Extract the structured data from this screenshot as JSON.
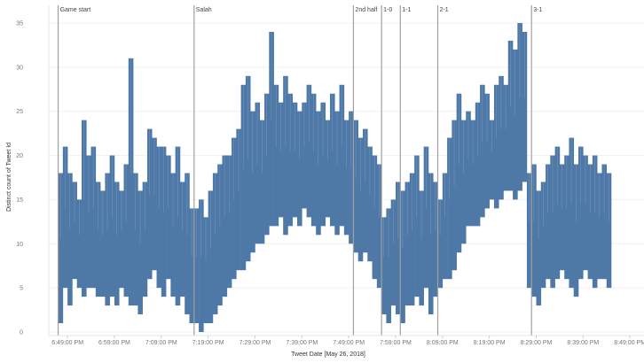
{
  "chart_data": {
    "type": "bar",
    "subtype": "range-band over time",
    "xlabel": "Tweet Date [May 26, 2018]",
    "ylabel": "Distinct count of Tweet Id",
    "ylim": [
      0,
      36
    ],
    "yticks": [
      0,
      5,
      10,
      15,
      20,
      25,
      30,
      35
    ],
    "xlim": [
      "18:45",
      "20:52"
    ],
    "xticks": [
      {
        "t": "18:49",
        "label": "6:49:00 PM"
      },
      {
        "t": "18:59",
        "label": "6:59:00 PM"
      },
      {
        "t": "19:09",
        "label": "7:09:00 PM"
      },
      {
        "t": "19:19",
        "label": "7:19:00 PM"
      },
      {
        "t": "19:29",
        "label": "7:29:00 PM"
      },
      {
        "t": "19:39",
        "label": "7:39:00 PM"
      },
      {
        "t": "19:49",
        "label": "7:49:00 PM"
      },
      {
        "t": "19:59",
        "label": "7:59:00 PM"
      },
      {
        "t": "20:09",
        "label": "8:09:00 PM"
      },
      {
        "t": "20:19",
        "label": "8:19:00 PM"
      },
      {
        "t": "20:29",
        "label": "8:29:00 PM"
      },
      {
        "t": "20:39",
        "label": "8:39:00 PM"
      },
      {
        "t": "20:49",
        "label": "8:49:00 PM"
      }
    ],
    "grid": true,
    "color": "#4e79a7",
    "annotation_color": "#a0a0a0",
    "annotations": [
      {
        "t": "18:47",
        "label": "Game start"
      },
      {
        "t": "19:16",
        "label": "Salah"
      },
      {
        "t": "19:50",
        "label": "2nd half"
      },
      {
        "t": "19:56",
        "label": "1-0"
      },
      {
        "t": "20:00",
        "label": "1-1"
      },
      {
        "t": "20:08",
        "label": "2-1"
      },
      {
        "t": "20:28",
        "label": "3-1"
      }
    ],
    "series_fields": [
      "minute",
      "min",
      "max"
    ],
    "points": [
      [
        "18:47",
        1,
        18
      ],
      [
        "18:48",
        5,
        21
      ],
      [
        "18:49",
        3,
        18
      ],
      [
        "18:50",
        6,
        17
      ],
      [
        "18:51",
        5,
        15
      ],
      [
        "18:52",
        4,
        24
      ],
      [
        "18:53",
        5,
        20
      ],
      [
        "18:54",
        5,
        21
      ],
      [
        "18:55",
        4,
        17
      ],
      [
        "18:56",
        4,
        16
      ],
      [
        "18:57",
        3,
        18
      ],
      [
        "18:58",
        4,
        20
      ],
      [
        "18:59",
        3,
        17
      ],
      [
        "19:00",
        5,
        16
      ],
      [
        "19:01",
        4,
        19
      ],
      [
        "19:02",
        3,
        31
      ],
      [
        "19:03",
        3,
        18
      ],
      [
        "19:04",
        2,
        16
      ],
      [
        "19:05",
        4,
        17
      ],
      [
        "19:06",
        6,
        23
      ],
      [
        "19:07",
        7,
        22
      ],
      [
        "19:08",
        5,
        21
      ],
      [
        "19:09",
        4,
        21
      ],
      [
        "19:10",
        6,
        20
      ],
      [
        "19:11",
        4,
        18
      ],
      [
        "19:12",
        3,
        21
      ],
      [
        "19:13",
        4,
        17
      ],
      [
        "19:14",
        2,
        18
      ],
      [
        "19:15",
        1,
        14
      ],
      [
        "19:16",
        1,
        14
      ],
      [
        "19:17",
        0,
        15
      ],
      [
        "19:18",
        1,
        13
      ],
      [
        "19:19",
        1,
        16
      ],
      [
        "19:20",
        2,
        18
      ],
      [
        "19:21",
        3,
        19
      ],
      [
        "19:22",
        4,
        20
      ],
      [
        "19:23",
        5,
        20
      ],
      [
        "19:24",
        6,
        22
      ],
      [
        "19:25",
        7,
        23
      ],
      [
        "19:26",
        7,
        28
      ],
      [
        "19:27",
        8,
        29
      ],
      [
        "19:28",
        9,
        25
      ],
      [
        "19:29",
        10,
        26
      ],
      [
        "19:30",
        10,
        24
      ],
      [
        "19:31",
        11,
        27
      ],
      [
        "19:32",
        12,
        34
      ],
      [
        "19:33",
        12,
        28
      ],
      [
        "19:34",
        13,
        26
      ],
      [
        "19:35",
        11,
        29
      ],
      [
        "19:36",
        12,
        27
      ],
      [
        "19:37",
        13,
        26
      ],
      [
        "19:38",
        12,
        25
      ],
      [
        "19:39",
        14,
        26
      ],
      [
        "19:40",
        13,
        28
      ],
      [
        "19:41",
        12,
        27
      ],
      [
        "19:42",
        11,
        25
      ],
      [
        "19:43",
        12,
        26
      ],
      [
        "19:44",
        13,
        24
      ],
      [
        "19:45",
        12,
        27
      ],
      [
        "19:46",
        11,
        25
      ],
      [
        "19:47",
        12,
        28
      ],
      [
        "19:48",
        11,
        24
      ],
      [
        "19:49",
        10,
        25
      ],
      [
        "19:50",
        9,
        24
      ],
      [
        "19:51",
        8,
        22
      ],
      [
        "19:52",
        9,
        23
      ],
      [
        "19:53",
        8,
        21
      ],
      [
        "19:54",
        6,
        20
      ],
      [
        "19:55",
        5,
        19
      ],
      [
        "19:56",
        2,
        13
      ],
      [
        "19:57",
        1,
        14
      ],
      [
        "19:58",
        3,
        15
      ],
      [
        "19:59",
        2,
        17
      ],
      [
        "20:00",
        1,
        16
      ],
      [
        "20:01",
        3,
        17
      ],
      [
        "20:02",
        3,
        18
      ],
      [
        "20:03",
        4,
        20
      ],
      [
        "20:04",
        3,
        16
      ],
      [
        "20:05",
        5,
        21
      ],
      [
        "20:06",
        2,
        18
      ],
      [
        "20:07",
        4,
        17
      ],
      [
        "20:08",
        5,
        15
      ],
      [
        "20:09",
        6,
        18
      ],
      [
        "20:10",
        6,
        22
      ],
      [
        "20:11",
        7,
        24
      ],
      [
        "20:12",
        9,
        27
      ],
      [
        "20:13",
        10,
        24
      ],
      [
        "20:14",
        12,
        25
      ],
      [
        "20:15",
        12,
        24
      ],
      [
        "20:16",
        12,
        26
      ],
      [
        "20:17",
        13,
        28
      ],
      [
        "20:18",
        14,
        27
      ],
      [
        "20:19",
        15,
        24
      ],
      [
        "20:20",
        14,
        28
      ],
      [
        "20:21",
        15,
        29
      ],
      [
        "20:22",
        16,
        28
      ],
      [
        "20:23",
        16,
        33
      ],
      [
        "20:24",
        15,
        32
      ],
      [
        "20:25",
        16,
        35
      ],
      [
        "20:26",
        17,
        34
      ],
      [
        "20:27",
        5,
        18
      ],
      [
        "20:28",
        4,
        19
      ],
      [
        "20:29",
        3,
        16
      ],
      [
        "20:30",
        5,
        17
      ],
      [
        "20:31",
        6,
        19
      ],
      [
        "20:32",
        5,
        20
      ],
      [
        "20:33",
        6,
        21
      ],
      [
        "20:34",
        7,
        19
      ],
      [
        "20:35",
        6,
        20
      ],
      [
        "20:36",
        5,
        22
      ],
      [
        "20:37",
        4,
        19
      ],
      [
        "20:38",
        6,
        21
      ],
      [
        "20:39",
        7,
        20
      ],
      [
        "20:40",
        6,
        19
      ],
      [
        "20:41",
        5,
        20
      ],
      [
        "20:42",
        6,
        18
      ],
      [
        "20:43",
        6,
        19
      ],
      [
        "20:44",
        5,
        18
      ]
    ]
  }
}
